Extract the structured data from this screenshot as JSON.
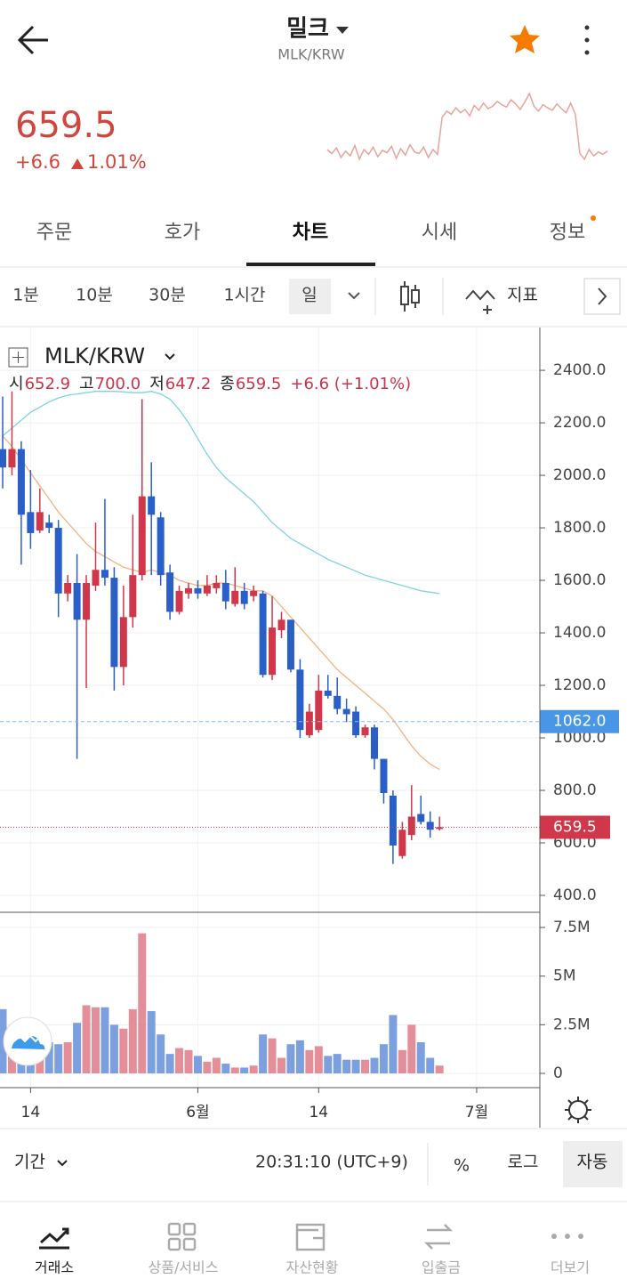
{
  "header": {
    "title": "밀크",
    "subtitle": "MLK/KRW"
  },
  "price": {
    "last": "659.5",
    "change": "+6.6",
    "percent": "1.01%",
    "sparkline": [
      30,
      25,
      32,
      20,
      28,
      22,
      35,
      18,
      30,
      24,
      33,
      21,
      29,
      26,
      34,
      19,
      31,
      23,
      36,
      27,
      25,
      33,
      20,
      30,
      24,
      70,
      78,
      74,
      82,
      76,
      80,
      72,
      85,
      79,
      88,
      81,
      84,
      90,
      86,
      83,
      92,
      87,
      80,
      89,
      100,
      84,
      78,
      86,
      82,
      79,
      87,
      81,
      76,
      88,
      74,
      25,
      18,
      30,
      22,
      27,
      24,
      28
    ]
  },
  "tabs": [
    "주문",
    "호가",
    "차트",
    "시세",
    "정보"
  ],
  "intervals": [
    "1분",
    "10분",
    "30분",
    "1시간",
    "일"
  ],
  "indicator": "지표",
  "chart_data": {
    "type": "candlestick",
    "symbol": "MLK/KRW",
    "legend": [
      "시",
      "652.9",
      "고",
      "700.0",
      "저",
      "647.2",
      "종",
      "659.5",
      "+6.6 (+1.01%)"
    ],
    "candles": [
      {
        "o": 2100,
        "h": 2300,
        "l": 1950,
        "c": 2030
      },
      {
        "o": 2030,
        "h": 2320,
        "l": 2000,
        "c": 2100
      },
      {
        "o": 2100,
        "h": 2130,
        "l": 1660,
        "c": 1850
      },
      {
        "o": 1860,
        "h": 2020,
        "l": 1720,
        "c": 1780
      },
      {
        "o": 1790,
        "h": 1950,
        "l": 1780,
        "c": 1860
      },
      {
        "o": 1820,
        "h": 1850,
        "l": 1780,
        "c": 1800
      },
      {
        "o": 1800,
        "h": 1830,
        "l": 1460,
        "c": 1550
      },
      {
        "o": 1550,
        "h": 1620,
        "l": 1520,
        "c": 1590
      },
      {
        "o": 1590,
        "h": 1700,
        "l": 920,
        "c": 1450
      },
      {
        "o": 1450,
        "h": 1620,
        "l": 1190,
        "c": 1590
      },
      {
        "o": 1580,
        "h": 1820,
        "l": 1560,
        "c": 1640
      },
      {
        "o": 1640,
        "h": 1910,
        "l": 1580,
        "c": 1610
      },
      {
        "o": 1610,
        "h": 1650,
        "l": 1180,
        "c": 1270
      },
      {
        "o": 1270,
        "h": 1580,
        "l": 1200,
        "c": 1460
      },
      {
        "o": 1460,
        "h": 1850,
        "l": 1420,
        "c": 1620
      },
      {
        "o": 1620,
        "h": 2290,
        "l": 1600,
        "c": 1920
      },
      {
        "o": 1920,
        "h": 2050,
        "l": 1620,
        "c": 1850
      },
      {
        "o": 1840,
        "h": 1860,
        "l": 1580,
        "c": 1620
      },
      {
        "o": 1630,
        "h": 1660,
        "l": 1450,
        "c": 1480
      },
      {
        "o": 1480,
        "h": 1580,
        "l": 1470,
        "c": 1560
      },
      {
        "o": 1550,
        "h": 1590,
        "l": 1530,
        "c": 1570
      },
      {
        "o": 1570,
        "h": 1600,
        "l": 1530,
        "c": 1550
      },
      {
        "o": 1550,
        "h": 1620,
        "l": 1540,
        "c": 1580
      },
      {
        "o": 1570,
        "h": 1620,
        "l": 1550,
        "c": 1590
      },
      {
        "o": 1590,
        "h": 1640,
        "l": 1490,
        "c": 1520
      },
      {
        "o": 1510,
        "h": 1650,
        "l": 1500,
        "c": 1560
      },
      {
        "o": 1560,
        "h": 1590,
        "l": 1490,
        "c": 1510
      },
      {
        "o": 1540,
        "h": 1580,
        "l": 1520,
        "c": 1560
      },
      {
        "o": 1550,
        "h": 1560,
        "l": 1230,
        "c": 1240
      },
      {
        "o": 1240,
        "h": 1540,
        "l": 1220,
        "c": 1420
      },
      {
        "o": 1410,
        "h": 1480,
        "l": 1380,
        "c": 1450
      },
      {
        "o": 1450,
        "h": 1450,
        "l": 1250,
        "c": 1260
      },
      {
        "o": 1260,
        "h": 1300,
        "l": 1000,
        "c": 1030
      },
      {
        "o": 1010,
        "h": 1130,
        "l": 1000,
        "c": 1100
      },
      {
        "o": 1030,
        "h": 1240,
        "l": 1020,
        "c": 1180
      },
      {
        "o": 1180,
        "h": 1240,
        "l": 1150,
        "c": 1160
      },
      {
        "o": 1160,
        "h": 1230,
        "l": 1090,
        "c": 1110
      },
      {
        "o": 1110,
        "h": 1150,
        "l": 1060,
        "c": 1090
      },
      {
        "o": 1100,
        "h": 1120,
        "l": 1000,
        "c": 1010
      },
      {
        "o": 1010,
        "h": 1050,
        "l": 1000,
        "c": 1040
      },
      {
        "o": 1040,
        "h": 1050,
        "l": 880,
        "c": 920
      },
      {
        "o": 920,
        "h": 920,
        "l": 750,
        "c": 790
      },
      {
        "o": 780,
        "h": 800,
        "l": 520,
        "c": 590
      },
      {
        "o": 550,
        "h": 680,
        "l": 540,
        "c": 650
      },
      {
        "o": 630,
        "h": 820,
        "l": 610,
        "c": 700
      },
      {
        "o": 710,
        "h": 780,
        "l": 670,
        "c": 680
      },
      {
        "o": 680,
        "h": 720,
        "l": 620,
        "c": 650
      },
      {
        "o": 652.9,
        "h": 700,
        "l": 647.2,
        "c": 659.5
      }
    ],
    "volumes": [
      3300000,
      1600000,
      1300000,
      900000,
      1700000,
      1600000,
      1500000,
      1600000,
      2600000,
      3500000,
      3400000,
      3400000,
      2500000,
      2300000,
      3300000,
      7200000,
      3200000,
      2000000,
      1000000,
      1300000,
      1200000,
      900000,
      600000,
      800000,
      500000,
      300000,
      300000,
      400000,
      2000000,
      1800000,
      800000,
      1500000,
      1700000,
      1200000,
      1400000,
      900000,
      1000000,
      700000,
      700000,
      700000,
      800000,
      1500000,
      3000000,
      1200000,
      2500000,
      1600000,
      800000,
      400000
    ],
    "series": [
      {
        "name": "MA-long",
        "color": "#7fd3e0",
        "values": [
          2150,
          2180,
          2210,
          2240,
          2260,
          2280,
          2295,
          2305,
          2310,
          2315,
          2320,
          2320,
          2320,
          2318,
          2315,
          2315,
          2320,
          2310,
          2290,
          2250,
          2200,
          2140,
          2080,
          2030,
          1990,
          1960,
          1930,
          1900,
          1860,
          1820,
          1790,
          1760,
          1740,
          1720,
          1700,
          1680,
          1665,
          1650,
          1635,
          1620,
          1610,
          1600,
          1590,
          1580,
          1570,
          1560,
          1555,
          1550
        ]
      },
      {
        "name": "MA-short",
        "color": "#f2b27e",
        "values": [
          2150,
          2110,
          2060,
          2010,
          1960,
          1910,
          1860,
          1820,
          1780,
          1740,
          1710,
          1690,
          1670,
          1650,
          1640,
          1630,
          1640,
          1630,
          1620,
          1600,
          1590,
          1580,
          1580,
          1590,
          1590,
          1580,
          1570,
          1560,
          1560,
          1540,
          1500,
          1460,
          1420,
          1380,
          1340,
          1300,
          1260,
          1230,
          1200,
          1170,
          1140,
          1110,
          1070,
          1020,
          970,
          930,
          900,
          880
        ]
      }
    ],
    "ylim": [
      339,
      2563
    ],
    "yticks": [
      {
        "value": 400,
        "label": "400.0"
      },
      {
        "value": 600,
        "label": "600.0"
      },
      {
        "value": 800,
        "label": "800.0"
      },
      {
        "value": 1000,
        "label": "1000.0"
      },
      {
        "value": 1200,
        "label": "1200.0"
      },
      {
        "value": 1400,
        "label": "1400.0"
      },
      {
        "value": 1600,
        "label": "1600.0"
      },
      {
        "value": 1800,
        "label": "1800.0"
      },
      {
        "value": 2000,
        "label": "2000.0"
      },
      {
        "value": 2200,
        "label": "2200.0"
      },
      {
        "value": 2400,
        "label": "2400.0"
      }
    ],
    "vlim": [
      -640000,
      8280000
    ],
    "vticks": [
      0,
      {
        "value": 2500000,
        "label": "2.5M"
      },
      {
        "value": 5000000,
        "label": "5M"
      },
      {
        "value": 7500000,
        "label": "7.5M"
      }
    ],
    "last_price": {
      "value": 659.5,
      "label": "659.5"
    },
    "ref_line": {
      "value": 1062,
      "label": "1062.0"
    },
    "x_labels": [
      {
        "label": "14",
        "at": 3
      },
      {
        "label": "6월",
        "at": 21
      },
      {
        "label": "14",
        "at": 34
      },
      {
        "label": "7월",
        "at": 51
      }
    ],
    "up_color": "#d0374a",
    "down_color": "#2a5fc8",
    "up_volume_color": "#e38e98",
    "down_volume_color": "#7c9fe0"
  },
  "toolbar": {
    "period": "기간",
    "time": "20:31:10 (UTC+9)",
    "percent": "%",
    "log": "로그",
    "auto": "자동"
  },
  "nav": [
    "거래소",
    "상품/서비스",
    "자산현황",
    "입출금",
    "더보기"
  ]
}
